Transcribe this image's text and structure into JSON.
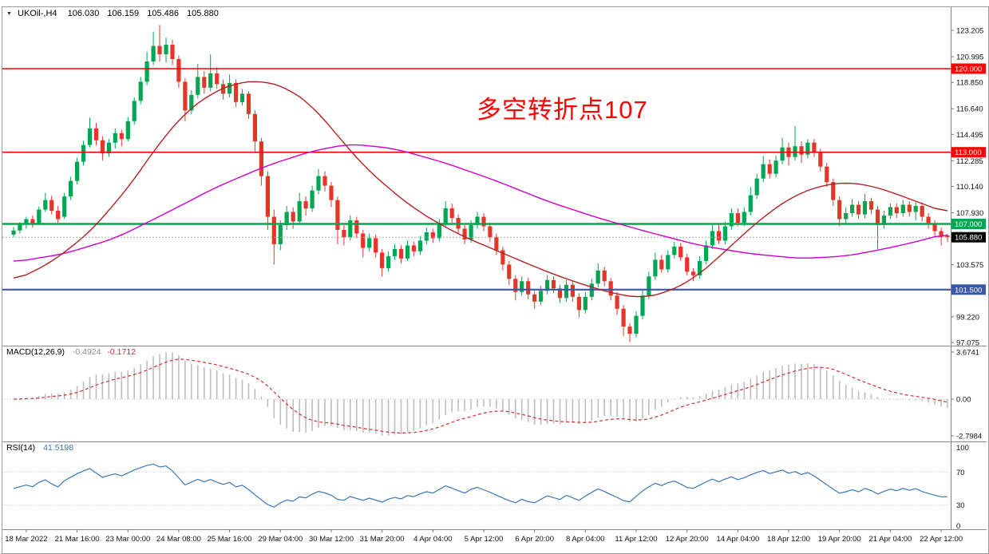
{
  "main_chart": {
    "header": {
      "collapse_icon": "▼",
      "symbol": "UKOil-,H4",
      "open": "106.030",
      "high": "106.159",
      "low": "105.486",
      "close": "105.880"
    },
    "annotation": "多空转折点107",
    "price_axis": {
      "labels": [
        {
          "value": 123.205,
          "text": "123.205"
        },
        {
          "value": 120.995,
          "text": "120.995"
        },
        {
          "value": 118.85,
          "text": "118.850"
        },
        {
          "value": 116.64,
          "text": "116.640"
        },
        {
          "value": 114.495,
          "text": "114.495"
        },
        {
          "value": 112.285,
          "text": "112.285"
        },
        {
          "value": 110.14,
          "text": "110.140"
        },
        {
          "value": 107.93,
          "text": "107.930"
        },
        {
          "value": 103.575,
          "text": "103.575"
        },
        {
          "value": 99.22,
          "text": "99.220"
        },
        {
          "value": 97.075,
          "text": "97.075"
        }
      ]
    },
    "levels": [
      {
        "value": 120.0,
        "label": "120.000",
        "color": "#FF0000",
        "thickness": 1.6
      },
      {
        "value": 113.0,
        "label": "113.000",
        "color": "#FF0000",
        "thickness": 1.6
      },
      {
        "value": 107.0,
        "label": "107.000",
        "color": "#00A651",
        "thickness": 2.4
      },
      {
        "value": 101.5,
        "label": "101.500",
        "color": "#3A57A8",
        "thickness": 2.2
      }
    ],
    "current_price": {
      "value": 105.88,
      "label": "105.880"
    }
  },
  "macd": {
    "title": "MACD(12,26,9)",
    "value_main": "-0.4924",
    "value_signal": "-0.1712",
    "axis_labels": [
      "3.6741",
      "0.00",
      "-2.7984"
    ]
  },
  "rsi": {
    "title": "RSI(14)",
    "value": "41.5198",
    "axis_labels": [
      "100",
      "70",
      "30",
      "0"
    ],
    "levels": [
      70,
      30
    ]
  },
  "colors": {
    "candle_up": "#00A651",
    "candle_down": "#E53528",
    "ma_magenta": "#CC00CC",
    "ma_crimson": "#B22222",
    "macd_hist": "#BDBDBD",
    "macd_signal": "#D33030",
    "rsi_line": "#3A78B5",
    "annotation_red": "#FF0000"
  },
  "chart_data": {
    "type": "candlestick",
    "symbol": "UKOil-",
    "timeframe": "H4",
    "ohlc_current": {
      "open": 106.03,
      "high": 106.159,
      "low": 105.486,
      "close": 105.88
    },
    "price_range_visible": [
      97.075,
      123.205
    ],
    "horizontal_levels": [
      120.0,
      113.0,
      107.0,
      101.5
    ],
    "indicators": {
      "macd": {
        "params": [
          12,
          26,
          9
        ],
        "last_main": -0.4924,
        "last_signal": -0.1712,
        "scale_max": 3.6741,
        "scale_min": -2.7984
      },
      "rsi": {
        "period": 14,
        "last": 41.5198,
        "levels": [
          70,
          30
        ]
      }
    },
    "time_labels": [
      "18 Mar 2022",
      "21 Mar 16:00",
      "23 Mar 00:00",
      "24 Mar 08:00",
      "25 Mar 16:00",
      "29 Mar 04:00",
      "30 Mar 12:00",
      "31 Mar 20:00",
      "4 Apr 04:00",
      "5 Apr 12:00",
      "6 Apr 20:00",
      "8 Apr 04:00",
      "11 Apr 12:00",
      "12 Apr 20:00",
      "14 Apr 04:00",
      "18 Apr 12:00",
      "19 Apr 20:00",
      "21 Apr 04:00",
      "22 Apr 12:00"
    ],
    "first_label_bar": 2,
    "label_step": 8,
    "candles": [
      [
        106.1,
        106.75,
        105.9,
        106.45
      ],
      [
        106.45,
        107.15,
        106.2,
        106.95
      ],
      [
        106.95,
        107.6,
        106.6,
        107.4
      ],
      [
        107.4,
        107.7,
        106.7,
        107.0
      ],
      [
        107.0,
        108.45,
        106.9,
        108.2
      ],
      [
        108.2,
        109.6,
        108.0,
        109.0
      ],
      [
        109.0,
        109.35,
        107.8,
        108.1
      ],
      [
        108.1,
        108.5,
        107.1,
        107.4
      ],
      [
        107.6,
        109.6,
        107.4,
        109.3
      ],
      [
        109.3,
        110.95,
        109.0,
        110.6
      ],
      [
        110.6,
        112.55,
        110.3,
        112.2
      ],
      [
        112.2,
        113.95,
        111.9,
        113.6
      ],
      [
        113.6,
        115.9,
        113.4,
        115.0
      ],
      [
        115.0,
        115.45,
        113.6,
        114.0
      ],
      [
        114.0,
        114.35,
        112.3,
        112.9
      ],
      [
        112.9,
        114.1,
        112.6,
        113.8
      ],
      [
        113.8,
        115.0,
        113.3,
        114.6
      ],
      [
        114.6,
        114.9,
        113.5,
        114.1
      ],
      [
        114.1,
        115.95,
        113.9,
        115.6
      ],
      [
        115.6,
        117.6,
        115.3,
        117.3
      ],
      [
        117.3,
        119.3,
        117.0,
        118.9
      ],
      [
        118.9,
        121.4,
        118.6,
        120.6
      ],
      [
        120.6,
        123.1,
        120.3,
        121.9
      ],
      [
        121.9,
        123.65,
        120.6,
        121.2
      ],
      [
        121.2,
        122.6,
        120.5,
        122.0
      ],
      [
        122.0,
        122.4,
        120.3,
        120.8
      ],
      [
        120.8,
        121.1,
        118.4,
        118.9
      ],
      [
        118.9,
        119.2,
        115.6,
        116.5
      ],
      [
        116.5,
        118.2,
        116.2,
        117.8
      ],
      [
        117.8,
        120.4,
        117.5,
        119.3
      ],
      [
        119.3,
        119.8,
        117.9,
        118.4
      ],
      [
        118.4,
        121.2,
        118.1,
        119.6
      ],
      [
        119.6,
        120.1,
        118.3,
        118.7
      ],
      [
        118.7,
        119.1,
        117.4,
        117.9
      ],
      [
        117.9,
        119.5,
        117.6,
        118.8
      ],
      [
        118.8,
        119.1,
        116.8,
        117.2
      ],
      [
        117.2,
        118.3,
        116.9,
        117.9
      ],
      [
        117.9,
        118.1,
        115.8,
        116.2
      ],
      [
        116.2,
        116.5,
        112.9,
        113.9
      ],
      [
        113.9,
        114.2,
        110.2,
        111.0
      ],
      [
        111.0,
        111.4,
        106.5,
        107.6
      ],
      [
        107.6,
        108.2,
        103.6,
        105.3
      ],
      [
        105.3,
        107.3,
        104.8,
        106.9
      ],
      [
        106.9,
        108.5,
        106.5,
        108.0
      ],
      [
        108.0,
        108.4,
        106.6,
        107.2
      ],
      [
        107.2,
        109.6,
        107.0,
        108.9
      ],
      [
        108.9,
        109.3,
        107.7,
        108.3
      ],
      [
        108.3,
        110.2,
        108.0,
        109.8
      ],
      [
        109.8,
        111.6,
        109.5,
        111.0
      ],
      [
        111.0,
        111.4,
        109.7,
        110.2
      ],
      [
        110.2,
        110.5,
        108.4,
        109.0
      ],
      [
        109.0,
        109.3,
        105.3,
        106.5
      ],
      [
        106.5,
        106.9,
        105.2,
        105.9
      ],
      [
        105.9,
        107.7,
        105.6,
        107.3
      ],
      [
        107.3,
        107.6,
        105.8,
        106.2
      ],
      [
        106.2,
        106.5,
        104.2,
        105.0
      ],
      [
        105.0,
        106.2,
        104.7,
        105.8
      ],
      [
        105.8,
        106.1,
        104.2,
        104.6
      ],
      [
        104.6,
        104.9,
        102.6,
        103.3
      ],
      [
        103.3,
        104.7,
        103.0,
        104.3
      ],
      [
        104.3,
        105.3,
        104.0,
        104.9
      ],
      [
        104.9,
        105.2,
        103.7,
        104.1
      ],
      [
        104.1,
        105.6,
        103.9,
        105.2
      ],
      [
        105.2,
        105.5,
        104.3,
        104.7
      ],
      [
        104.7,
        106.0,
        104.4,
        105.6
      ],
      [
        105.6,
        106.7,
        105.3,
        106.3
      ],
      [
        106.3,
        106.6,
        105.4,
        105.8
      ],
      [
        105.8,
        107.4,
        105.5,
        107.0
      ],
      [
        107.0,
        108.9,
        106.8,
        108.3
      ],
      [
        108.3,
        108.7,
        107.1,
        107.5
      ],
      [
        107.5,
        107.8,
        106.2,
        106.6
      ],
      [
        106.6,
        106.9,
        105.3,
        105.7
      ],
      [
        105.7,
        107.3,
        105.4,
        106.9
      ],
      [
        106.9,
        108.0,
        106.6,
        107.6
      ],
      [
        107.6,
        107.9,
        106.4,
        106.8
      ],
      [
        106.8,
        107.1,
        105.5,
        105.9
      ],
      [
        105.9,
        106.2,
        104.4,
        104.8
      ],
      [
        104.8,
        105.1,
        103.1,
        103.6
      ],
      [
        103.6,
        103.9,
        101.9,
        102.4
      ],
      [
        102.4,
        102.7,
        100.6,
        101.3
      ],
      [
        101.3,
        102.6,
        101.0,
        102.2
      ],
      [
        102.2,
        102.5,
        100.7,
        101.1
      ],
      [
        101.1,
        101.4,
        99.9,
        100.5
      ],
      [
        100.5,
        101.8,
        100.2,
        101.4
      ],
      [
        101.4,
        102.7,
        101.1,
        102.3
      ],
      [
        102.3,
        102.6,
        101.2,
        101.6
      ],
      [
        101.6,
        101.9,
        100.4,
        100.8
      ],
      [
        100.8,
        102.3,
        100.5,
        101.9
      ],
      [
        101.9,
        102.2,
        100.5,
        100.9
      ],
      [
        100.9,
        101.2,
        99.2,
        99.8
      ],
      [
        99.8,
        101.3,
        99.5,
        100.9
      ],
      [
        100.9,
        102.4,
        100.6,
        102.0
      ],
      [
        102.0,
        103.7,
        101.7,
        103.1
      ],
      [
        103.1,
        103.4,
        101.8,
        102.2
      ],
      [
        102.2,
        102.5,
        100.6,
        101.0
      ],
      [
        101.0,
        101.3,
        99.4,
        99.9
      ],
      [
        99.9,
        100.2,
        97.6,
        98.4
      ],
      [
        98.4,
        98.7,
        97.1,
        97.8
      ],
      [
        97.8,
        99.7,
        97.5,
        99.3
      ],
      [
        99.3,
        101.5,
        99.0,
        101.0
      ],
      [
        101.0,
        103.0,
        100.7,
        102.6
      ],
      [
        102.6,
        104.6,
        102.3,
        104.0
      ],
      [
        104.0,
        104.4,
        102.9,
        103.2
      ],
      [
        103.2,
        104.8,
        102.9,
        104.4
      ],
      [
        104.4,
        105.5,
        104.1,
        105.1
      ],
      [
        105.1,
        105.4,
        103.9,
        104.2
      ],
      [
        104.2,
        104.5,
        102.7,
        103.0
      ],
      [
        103.0,
        103.3,
        102.2,
        102.7
      ],
      [
        102.7,
        104.3,
        102.4,
        103.9
      ],
      [
        103.9,
        105.6,
        103.6,
        105.2
      ],
      [
        105.2,
        106.9,
        104.9,
        106.4
      ],
      [
        106.4,
        107.0,
        105.3,
        105.6
      ],
      [
        105.6,
        107.2,
        105.3,
        106.8
      ],
      [
        106.8,
        108.3,
        106.5,
        107.9
      ],
      [
        107.9,
        108.3,
        106.8,
        107.1
      ],
      [
        107.1,
        108.4,
        106.8,
        108.0
      ],
      [
        108.0,
        110.1,
        107.7,
        109.4
      ],
      [
        109.4,
        111.2,
        109.1,
        110.8
      ],
      [
        110.8,
        112.7,
        110.5,
        112.0
      ],
      [
        112.0,
        112.4,
        110.8,
        111.2
      ],
      [
        111.2,
        112.7,
        110.9,
        112.3
      ],
      [
        112.3,
        114.2,
        112.0,
        113.4
      ],
      [
        113.4,
        113.8,
        111.9,
        112.6
      ],
      [
        112.6,
        115.2,
        112.3,
        113.5
      ],
      [
        113.5,
        113.9,
        112.1,
        112.8
      ],
      [
        112.8,
        114.1,
        112.5,
        113.8
      ],
      [
        113.8,
        114.1,
        112.6,
        113.0
      ],
      [
        113.0,
        113.3,
        111.4,
        111.8
      ],
      [
        111.8,
        112.1,
        110.1,
        110.5
      ],
      [
        110.5,
        110.8,
        108.5,
        109.0
      ],
      [
        109.0,
        109.3,
        106.8,
        107.4
      ],
      [
        107.4,
        108.4,
        107.0,
        107.9
      ],
      [
        107.9,
        109.1,
        107.6,
        108.6
      ],
      [
        108.6,
        108.9,
        107.4,
        107.8
      ],
      [
        107.8,
        109.5,
        107.5,
        108.9
      ],
      [
        108.9,
        109.2,
        107.8,
        108.2
      ],
      [
        108.2,
        108.5,
        104.9,
        106.9
      ],
      [
        106.9,
        108.1,
        106.6,
        107.7
      ],
      [
        107.7,
        108.7,
        107.4,
        108.4
      ],
      [
        108.4,
        108.7,
        107.5,
        107.9
      ],
      [
        107.9,
        109.0,
        107.6,
        108.6
      ],
      [
        108.6,
        108.9,
        107.6,
        108.0
      ],
      [
        108.0,
        108.8,
        107.3,
        108.5
      ],
      [
        108.5,
        108.8,
        107.2,
        107.6
      ],
      [
        107.6,
        107.9,
        106.6,
        107.0
      ],
      [
        107.0,
        107.3,
        105.9,
        106.4
      ],
      [
        106.4,
        106.7,
        105.2,
        105.9
      ],
      [
        106.03,
        106.159,
        105.486,
        105.88
      ]
    ],
    "overlays": {
      "ma_magenta": [
        [
          0,
          103.8
        ],
        [
          8,
          104.5
        ],
        [
          16,
          105.8
        ],
        [
          24,
          107.9
        ],
        [
          32,
          110.1
        ],
        [
          40,
          111.9
        ],
        [
          47,
          113.1
        ],
        [
          53,
          113.7
        ],
        [
          60,
          113.3
        ],
        [
          68,
          112.1
        ],
        [
          76,
          110.6
        ],
        [
          84,
          108.9
        ],
        [
          92,
          107.5
        ],
        [
          100,
          106.3
        ],
        [
          108,
          105.2
        ],
        [
          116,
          104.5
        ],
        [
          124,
          104.1
        ],
        [
          131,
          104.3
        ],
        [
          137,
          104.9
        ],
        [
          142,
          105.5
        ],
        [
          147,
          106.2
        ]
      ],
      "ma_crimson": [
        [
          0,
          102.2
        ],
        [
          6,
          103.8
        ],
        [
          12,
          106.3
        ],
        [
          18,
          110.0
        ],
        [
          23,
          113.8
        ],
        [
          27,
          116.3
        ],
        [
          31,
          117.9
        ],
        [
          35,
          118.8
        ],
        [
          39,
          119.0
        ],
        [
          43,
          118.4
        ],
        [
          47,
          116.9
        ],
        [
          51,
          114.4
        ],
        [
          55,
          111.9
        ],
        [
          59,
          110.0
        ],
        [
          63,
          108.3
        ],
        [
          67,
          107.0
        ],
        [
          71,
          105.9
        ],
        [
          75,
          105.0
        ],
        [
          79,
          104.1
        ],
        [
          83,
          103.2
        ],
        [
          87,
          102.4
        ],
        [
          91,
          101.7
        ],
        [
          95,
          101.1
        ],
        [
          99,
          100.8
        ],
        [
          103,
          101.3
        ],
        [
          107,
          102.4
        ],
        [
          111,
          104.2
        ],
        [
          115,
          106.2
        ],
        [
          119,
          108.0
        ],
        [
          123,
          109.4
        ],
        [
          127,
          110.2
        ],
        [
          131,
          110.5
        ],
        [
          135,
          110.2
        ],
        [
          139,
          109.5
        ],
        [
          143,
          108.7
        ],
        [
          147,
          107.9
        ]
      ]
    }
  }
}
